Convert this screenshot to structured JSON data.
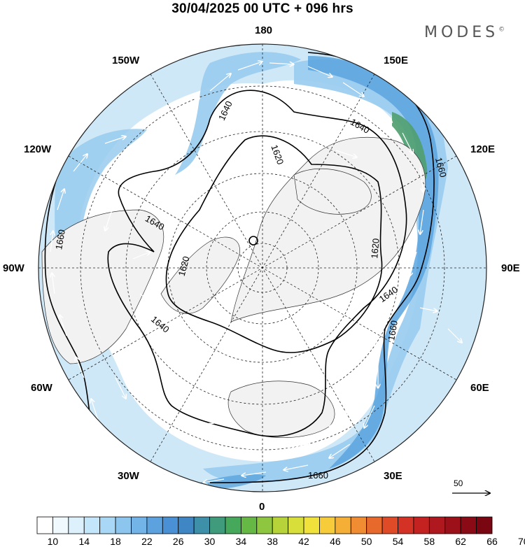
{
  "title": "30/04/2025  00 UTC  + 096 hrs",
  "brand": "MODES",
  "brand_mark": "©",
  "longitude_labels": {
    "n180": "180",
    "w150": "150W",
    "e150": "150E",
    "w120": "120W",
    "e120": "120E",
    "w90": "90W",
    "e90": "90E",
    "w60": "60W",
    "e60": "60E",
    "w30": "30W",
    "e30": "30E",
    "n0": "0"
  },
  "contour_labels": [
    "1640",
    "1640",
    "1620",
    "1660",
    "1640",
    "1620",
    "1640",
    "1620",
    "1640",
    "1660",
    "1660",
    "1660"
  ],
  "reference_vector": "50",
  "colorbar": {
    "labels": [
      "10",
      "14",
      "18",
      "22",
      "26",
      "30",
      "34",
      "38",
      "42",
      "46",
      "50",
      "54",
      "58",
      "62",
      "66",
      "70"
    ],
    "colors": [
      "#ffffff",
      "#f0f9fe",
      "#dcf1fc",
      "#c4e6fa",
      "#a8d8f5",
      "#8cc6ef",
      "#72b4e8",
      "#5ca2df",
      "#4a90d4",
      "#3f86c5",
      "#3e8fa8",
      "#3f9b7c",
      "#46a85a",
      "#66b845",
      "#8fc640",
      "#b6d43a",
      "#d9df3a",
      "#f0e23b",
      "#f6cc3a",
      "#f5ae36",
      "#f08c32",
      "#e8692c",
      "#df4a27",
      "#d33224",
      "#c32221",
      "#b0181f",
      "#9c1019",
      "#8a0b15",
      "#7a0611"
    ]
  },
  "map_colors": {
    "land": "#f2f2f2",
    "ocean": "#ffffff",
    "jet_weak": "#cfe8f8",
    "jet_mid": "#98cbee",
    "jet_strong": "#5aa5df",
    "jet_core": "#3e8fd4",
    "jet_max": "#4f9f6e"
  }
}
